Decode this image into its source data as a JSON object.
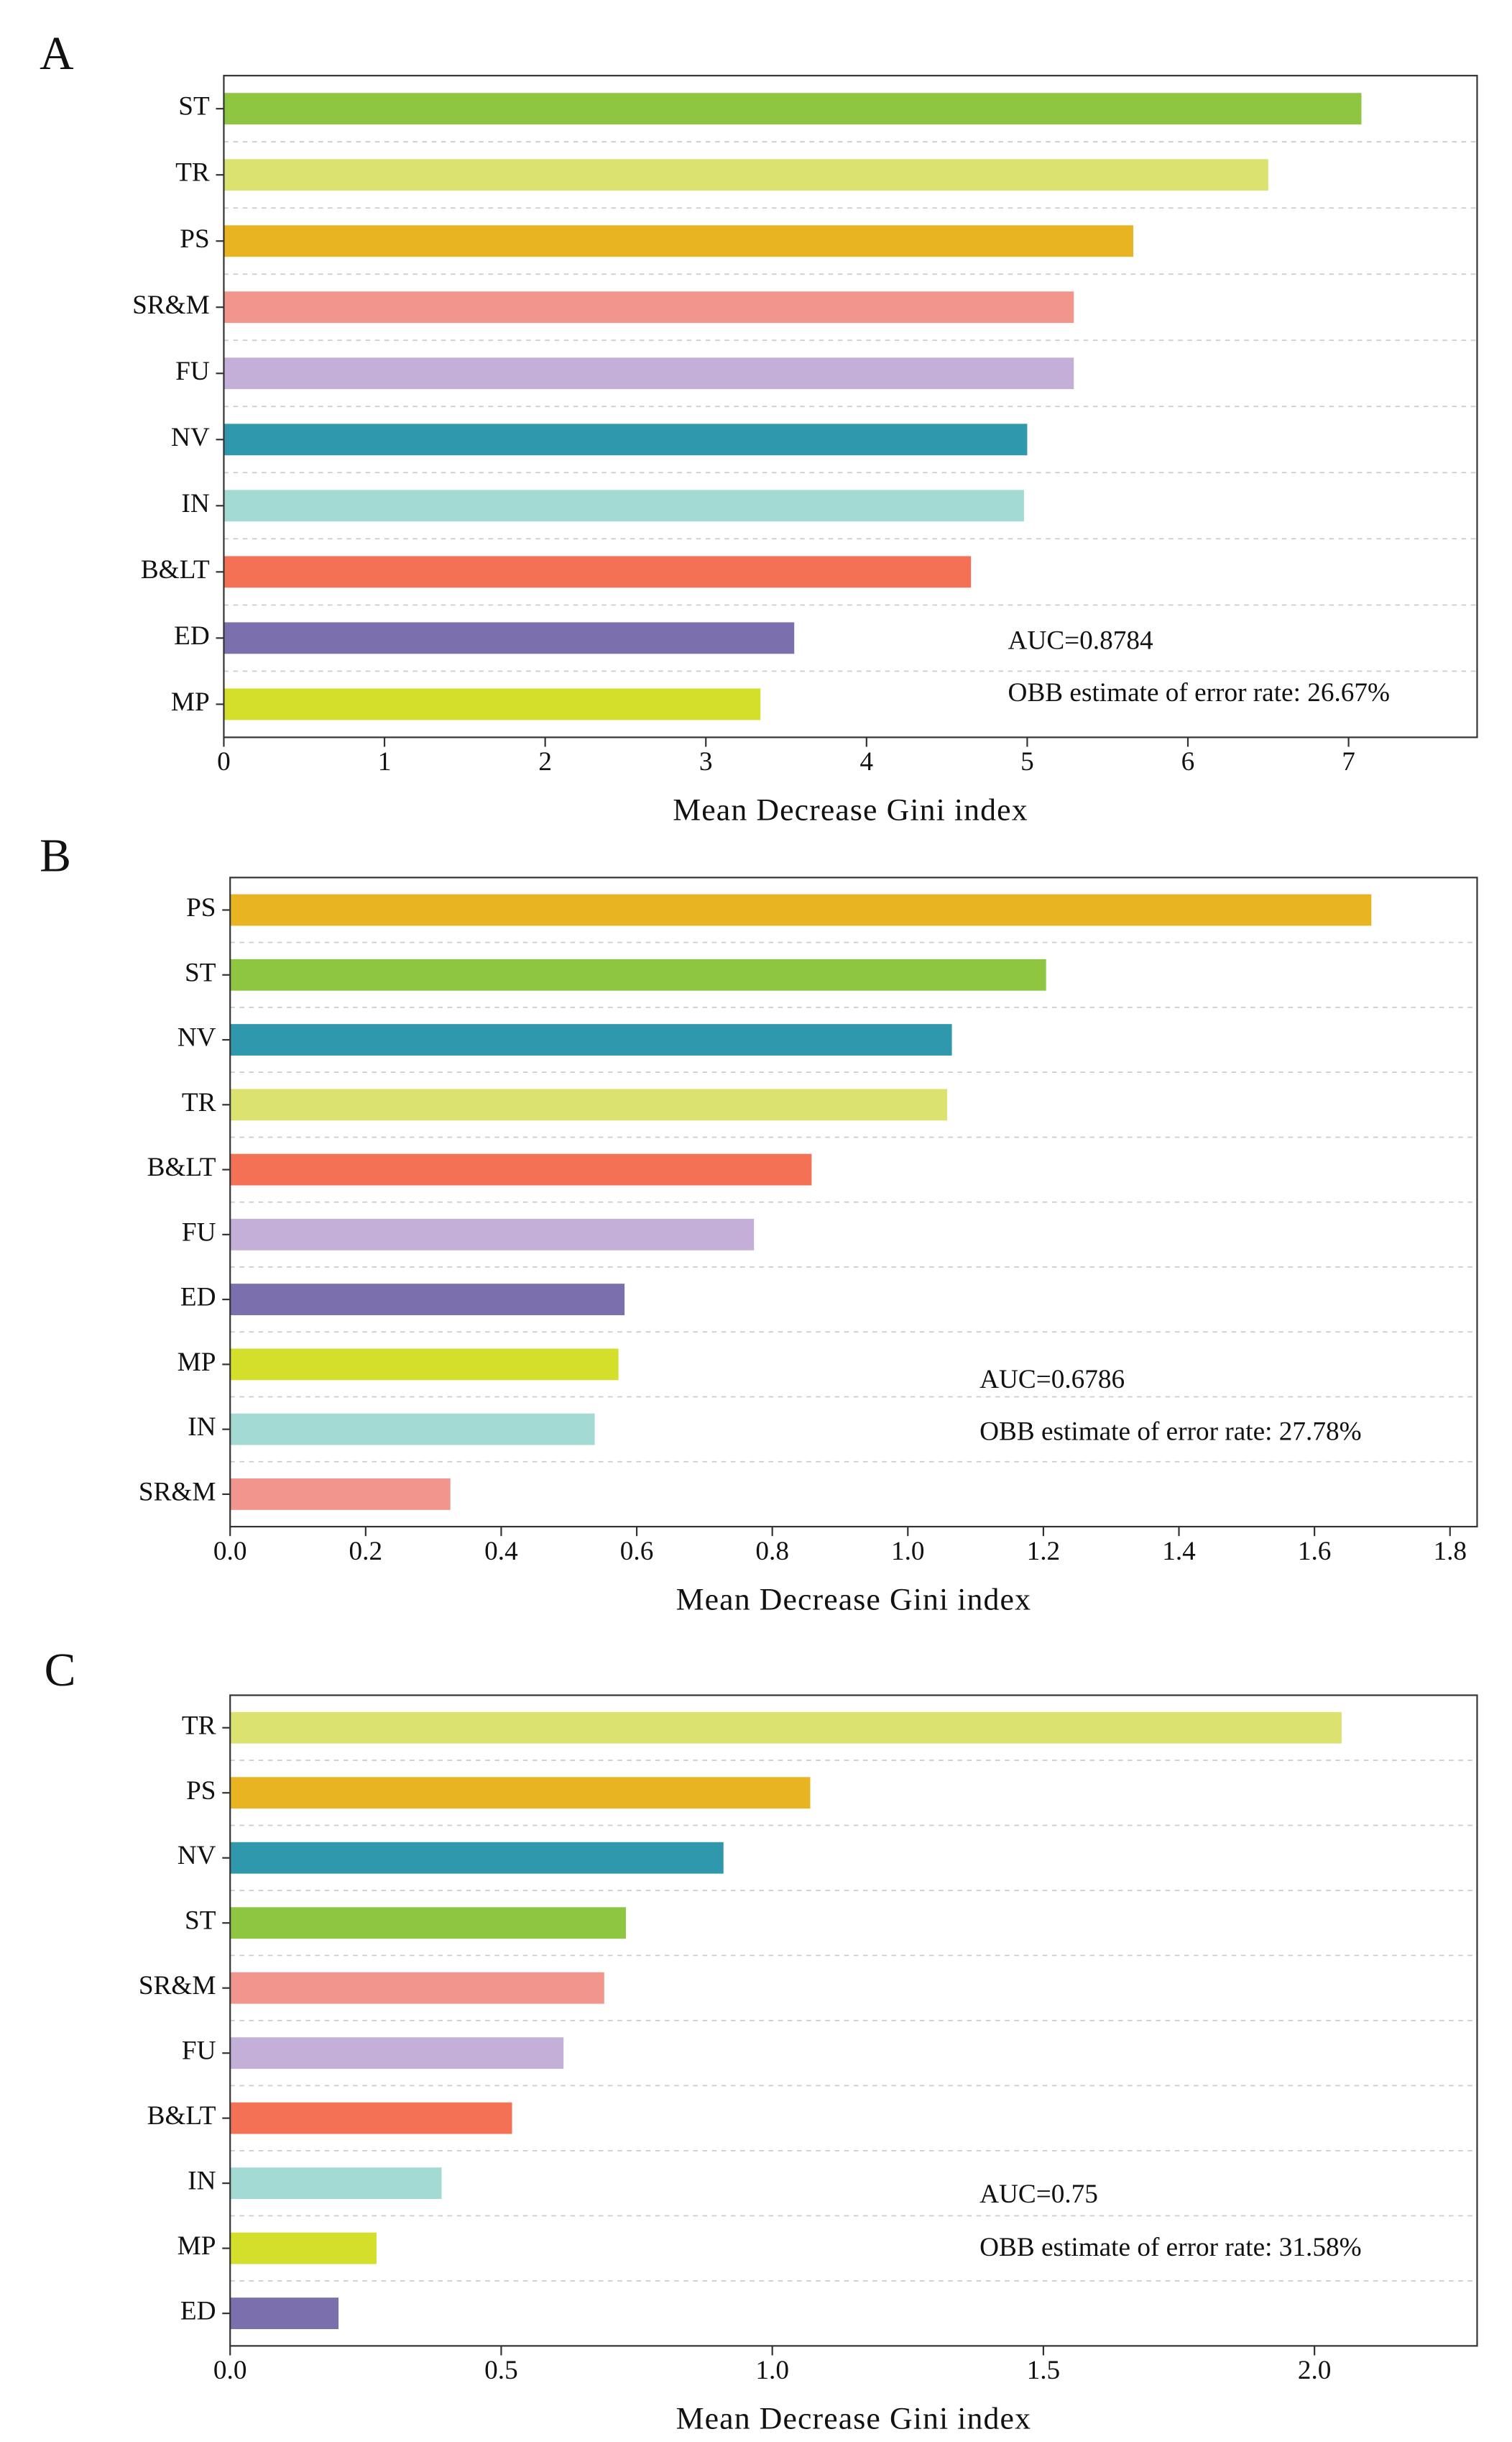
{
  "chart_data": [
    {
      "type": "barh",
      "panel_label": "A",
      "xlabel": "Mean Decrease Gini index",
      "annotations": [
        "AUC=0.8784",
        "OBB estimate of error rate: 26.67%"
      ],
      "categories": [
        "ST",
        "TR",
        "PS",
        "SR&M",
        "FU",
        "NV",
        "IN",
        "B&LT",
        "ED",
        "MP"
      ],
      "values": [
        7.08,
        6.5,
        5.66,
        5.29,
        5.29,
        5.0,
        4.98,
        4.65,
        3.55,
        3.34
      ],
      "colors": [
        "#8fc641",
        "#dbe26f",
        "#e8b421",
        "#f2968d",
        "#c4afd8",
        "#3098ad",
        "#a3dbd4",
        "#f47156",
        "#7b6fae",
        "#d3df2a"
      ],
      "xlim": [
        0,
        7.8
      ],
      "xticks": [
        0,
        1,
        2,
        3,
        4,
        5,
        6,
        7
      ]
    },
    {
      "type": "barh",
      "panel_label": "B",
      "xlabel": "Mean Decrease Gini index",
      "annotations": [
        "AUC=0.6786",
        "OBB estimate of error rate: 27.78%"
      ],
      "categories": [
        "PS",
        "ST",
        "NV",
        "TR",
        "B&LT",
        "FU",
        "ED",
        "MP",
        "IN",
        "SR&M"
      ],
      "values": [
        1.684,
        1.204,
        1.065,
        1.058,
        0.858,
        0.773,
        0.582,
        0.573,
        0.538,
        0.325
      ],
      "colors": [
        "#e8b421",
        "#8fc641",
        "#3098ad",
        "#dbe26f",
        "#f47156",
        "#c4afd8",
        "#7b6fae",
        "#d3df2a",
        "#a3dbd4",
        "#f2968d"
      ],
      "xlim": [
        0,
        1.84
      ],
      "xticks": [
        {
          "value": 0,
          "label": "0.0"
        },
        0.2,
        0.4,
        0.6,
        0.8,
        {
          "value": 1,
          "label": "1.0"
        },
        1.2,
        1.4,
        1.6,
        1.8
      ]
    },
    {
      "type": "barh",
      "panel_label": "C",
      "xlabel": "Mean Decrease Gini index",
      "annotations": [
        "AUC=0.75",
        "OBB estimate of error rate: 31.58%"
      ],
      "categories": [
        "TR",
        "PS",
        "NV",
        "ST",
        "SR&M",
        "FU",
        "B&LT",
        "IN",
        "MP",
        "ED"
      ],
      "values": [
        2.05,
        1.07,
        0.91,
        0.73,
        0.69,
        0.615,
        0.52,
        0.39,
        0.27,
        0.2
      ],
      "colors": [
        "#dbe26f",
        "#e8b421",
        "#3098ad",
        "#8fc641",
        "#f2968d",
        "#c4afd8",
        "#f47156",
        "#a3dbd4",
        "#d3df2a",
        "#7b6fae"
      ],
      "xlim": [
        0,
        2.3
      ],
      "xticks": [
        {
          "value": 0,
          "label": "0.0"
        },
        0.5,
        {
          "value": 1,
          "label": "1.0"
        },
        1.5,
        {
          "value": 2,
          "label": "2.0"
        }
      ]
    }
  ]
}
